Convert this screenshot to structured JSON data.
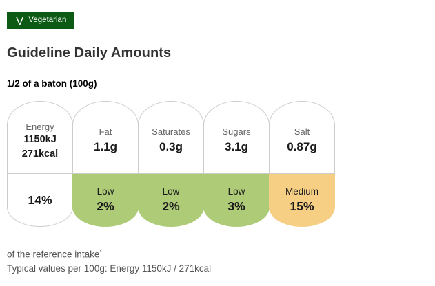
{
  "badge": {
    "icon": "V",
    "label": "Vegetarian"
  },
  "page": {
    "title": "Guideline Daily Amounts",
    "serving": "1/2 of a baton (100g)"
  },
  "gda": {
    "items": [
      {
        "label": "Energy",
        "value_line1": "1150kJ",
        "value_line2": "271kcal",
        "level": "",
        "percent": "14%",
        "level_key": "none"
      },
      {
        "label": "Fat",
        "value": "1.1g",
        "level": "Low",
        "percent": "2%",
        "level_key": "low"
      },
      {
        "label": "Saturates",
        "value": "0.3g",
        "level": "Low",
        "percent": "2%",
        "level_key": "low"
      },
      {
        "label": "Sugars",
        "value": "3.1g",
        "level": "Low",
        "percent": "3%",
        "level_key": "low"
      },
      {
        "label": "Salt",
        "value": "0.87g",
        "level": "Medium",
        "percent": "15%",
        "level_key": "medium"
      }
    ]
  },
  "footnotes": {
    "reference": "of the reference intake",
    "reference_mark": "*",
    "typical": "Typical values per 100g: Energy 1150kJ / 271kcal"
  },
  "colors": {
    "badge_green": "#0c5a13",
    "low_green": "#aecb78",
    "medium_amber": "#f6cf85",
    "none_white": "#ffffff"
  }
}
